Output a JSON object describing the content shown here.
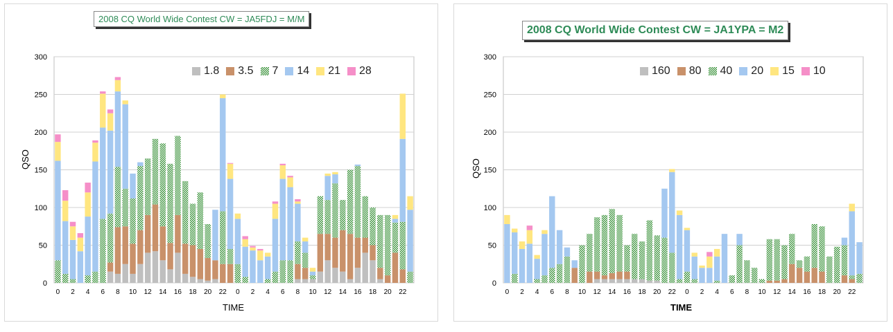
{
  "chart_data": [
    {
      "type": "bar",
      "stacked": true,
      "title": "2008 CQ World Wide Contest CW    = JA5FDJ =  M/M",
      "xlabel": "TIME",
      "ylabel": "QSO",
      "ylim": [
        0,
        300
      ],
      "yticks": [
        "0",
        "50",
        "100",
        "150",
        "200",
        "250",
        "300"
      ],
      "categories": [
        "0",
        "1",
        "2",
        "3",
        "4",
        "5",
        "6",
        "7",
        "8",
        "9",
        "10",
        "11",
        "12",
        "13",
        "14",
        "15",
        "16",
        "17",
        "18",
        "19",
        "20",
        "21",
        "22",
        "23",
        "0",
        "1",
        "2",
        "3",
        "4",
        "5",
        "6",
        "7",
        "8",
        "9",
        "10",
        "11",
        "12",
        "13",
        "14",
        "15",
        "16",
        "17",
        "18",
        "19",
        "20",
        "21",
        "22",
        "23"
      ],
      "xtick_labels": [
        "0",
        "2",
        "4",
        "6",
        "8",
        "10",
        "12",
        "14",
        "16",
        "18",
        "20",
        "22",
        "0",
        "2",
        "4",
        "6",
        "8",
        "10",
        "12",
        "14",
        "16",
        "18",
        "20",
        "22"
      ],
      "legend_position": "top-right",
      "series": [
        {
          "name": "1.8",
          "color": "#bfbfbf",
          "values": [
            0,
            0,
            0,
            0,
            0,
            0,
            0,
            15,
            12,
            25,
            12,
            25,
            40,
            42,
            30,
            18,
            40,
            12,
            8,
            5,
            3,
            5,
            0,
            0,
            0,
            0,
            0,
            0,
            0,
            0,
            0,
            0,
            5,
            5,
            5,
            15,
            30,
            20,
            15,
            5,
            20,
            40,
            30,
            5,
            0,
            0,
            0,
            0
          ]
        },
        {
          "name": "3.5",
          "color": "#c9916a",
          "values": [
            0,
            0,
            0,
            0,
            0,
            0,
            0,
            12,
            62,
            50,
            40,
            45,
            50,
            62,
            45,
            35,
            50,
            40,
            42,
            40,
            30,
            25,
            25,
            25,
            0,
            0,
            0,
            0,
            0,
            0,
            0,
            0,
            20,
            15,
            0,
            50,
            35,
            40,
            55,
            60,
            40,
            20,
            20,
            15,
            10,
            40,
            18,
            0
          ]
        },
        {
          "name": "7",
          "color": "#2e8b2e",
          "pattern": true,
          "values": [
            30,
            12,
            5,
            0,
            10,
            15,
            85,
            65,
            80,
            50,
            60,
            85,
            75,
            87,
            110,
            105,
            105,
            83,
            55,
            75,
            45,
            0,
            70,
            20,
            25,
            8,
            0,
            0,
            5,
            15,
            30,
            30,
            30,
            20,
            5,
            50,
            45,
            72,
            40,
            85,
            95,
            55,
            50,
            70,
            80,
            40,
            63,
            15
          ]
        },
        {
          "name": "14",
          "color": "#a4c8f0",
          "values": [
            132,
            70,
            52,
            42,
            78,
            146,
            121,
            110,
            100,
            112,
            33,
            5,
            0,
            0,
            0,
            0,
            0,
            0,
            0,
            0,
            0,
            67,
            150,
            93,
            60,
            40,
            43,
            30,
            30,
            70,
            108,
            97,
            50,
            15,
            5,
            0,
            32,
            12,
            0,
            0,
            2,
            0,
            0,
            0,
            0,
            5,
            110,
            82
          ]
        },
        {
          "name": "21",
          "color": "#ffe680",
          "values": [
            25,
            27,
            18,
            18,
            32,
            25,
            45,
            23,
            15,
            5,
            0,
            0,
            0,
            0,
            0,
            0,
            0,
            0,
            0,
            0,
            0,
            0,
            5,
            20,
            7,
            10,
            4,
            13,
            5,
            20,
            18,
            13,
            3,
            5,
            5,
            0,
            3,
            3,
            0,
            0,
            0,
            0,
            0,
            0,
            0,
            5,
            60,
            18
          ]
        },
        {
          "name": "28",
          "color": "#f58fc8",
          "values": [
            10,
            14,
            6,
            6,
            13,
            3,
            3,
            5,
            4,
            0,
            0,
            0,
            0,
            0,
            0,
            0,
            0,
            0,
            0,
            0,
            0,
            0,
            0,
            1,
            0,
            4,
            2,
            2,
            0,
            3,
            2,
            2,
            3,
            0,
            0,
            0,
            0,
            0,
            0,
            0,
            0,
            0,
            0,
            0,
            0,
            0,
            0,
            0
          ]
        }
      ]
    },
    {
      "type": "bar",
      "stacked": true,
      "title": "2008 CQ World Wide Contest CW    = JA1YPA =  M2",
      "xlabel": "TIME",
      "ylabel": "QSO",
      "ylim": [
        0,
        300
      ],
      "yticks": [
        "0",
        "50",
        "100",
        "150",
        "200",
        "250",
        "300"
      ],
      "categories": [
        "0",
        "1",
        "2",
        "3",
        "4",
        "5",
        "6",
        "7",
        "8",
        "9",
        "10",
        "11",
        "12",
        "13",
        "14",
        "15",
        "16",
        "17",
        "18",
        "19",
        "20",
        "21",
        "22",
        "23",
        "0",
        "1",
        "2",
        "3",
        "4",
        "5",
        "6",
        "7",
        "8",
        "9",
        "10",
        "11",
        "12",
        "13",
        "14",
        "15",
        "16",
        "17",
        "18",
        "19",
        "20",
        "21",
        "22",
        "23"
      ],
      "xtick_labels": [
        "0",
        "2",
        "4",
        "6",
        "8",
        "10",
        "12",
        "14",
        "16",
        "18",
        "20",
        "22",
        "0",
        "2",
        "4",
        "6",
        "8",
        "10",
        "12",
        "14",
        "16",
        "18",
        "20",
        "22"
      ],
      "legend_position": "top-right",
      "series": [
        {
          "name": "160",
          "color": "#bfbfbf",
          "values": [
            0,
            0,
            0,
            0,
            0,
            0,
            0,
            0,
            0,
            0,
            0,
            0,
            5,
            5,
            5,
            5,
            5,
            5,
            5,
            3,
            3,
            0,
            0,
            0,
            0,
            0,
            0,
            0,
            0,
            0,
            0,
            0,
            0,
            0,
            0,
            0,
            0,
            0,
            0,
            0,
            0,
            0,
            0,
            0,
            0,
            0,
            0,
            0
          ]
        },
        {
          "name": "80",
          "color": "#c9916a",
          "values": [
            0,
            0,
            0,
            0,
            0,
            0,
            0,
            0,
            0,
            20,
            0,
            15,
            10,
            5,
            8,
            10,
            10,
            0,
            0,
            0,
            0,
            0,
            0,
            0,
            0,
            0,
            0,
            0,
            0,
            0,
            0,
            0,
            0,
            0,
            0,
            3,
            3,
            5,
            25,
            20,
            15,
            20,
            15,
            0,
            0,
            10,
            5,
            0
          ]
        },
        {
          "name": "40",
          "color": "#2e8b2e",
          "pattern": true,
          "values": [
            0,
            12,
            0,
            0,
            5,
            10,
            20,
            25,
            35,
            0,
            50,
            50,
            72,
            80,
            85,
            75,
            35,
            60,
            50,
            80,
            60,
            60,
            40,
            5,
            15,
            5,
            0,
            0,
            3,
            0,
            10,
            50,
            30,
            20,
            5,
            55,
            55,
            45,
            40,
            10,
            20,
            58,
            60,
            35,
            48,
            40,
            5,
            12
          ]
        },
        {
          "name": "20",
          "color": "#a4c8f0",
          "values": [
            78,
            55,
            45,
            52,
            27,
            55,
            95,
            45,
            12,
            10,
            0,
            0,
            0,
            0,
            0,
            0,
            0,
            0,
            0,
            0,
            0,
            65,
            107,
            85,
            55,
            30,
            20,
            20,
            32,
            65,
            0,
            15,
            0,
            0,
            0,
            0,
            0,
            0,
            0,
            0,
            0,
            0,
            0,
            0,
            0,
            10,
            85,
            42
          ]
        },
        {
          "name": "15",
          "color": "#ffe680",
          "values": [
            12,
            5,
            10,
            18,
            5,
            5,
            0,
            0,
            0,
            0,
            0,
            0,
            0,
            0,
            0,
            0,
            0,
            0,
            0,
            0,
            0,
            0,
            4,
            6,
            3,
            5,
            3,
            15,
            10,
            0,
            0,
            0,
            0,
            0,
            0,
            0,
            0,
            0,
            0,
            0,
            0,
            0,
            0,
            0,
            0,
            0,
            10,
            0
          ]
        },
        {
          "name": "10",
          "color": "#f58fc8",
          "values": [
            0,
            0,
            0,
            6,
            0,
            0,
            0,
            0,
            0,
            0,
            0,
            0,
            0,
            0,
            0,
            0,
            0,
            0,
            0,
            0,
            0,
            0,
            0,
            0,
            0,
            0,
            0,
            6,
            0,
            0,
            0,
            0,
            0,
            0,
            0,
            0,
            0,
            0,
            0,
            0,
            0,
            0,
            0,
            0,
            0,
            0,
            0,
            0
          ]
        }
      ]
    }
  ]
}
